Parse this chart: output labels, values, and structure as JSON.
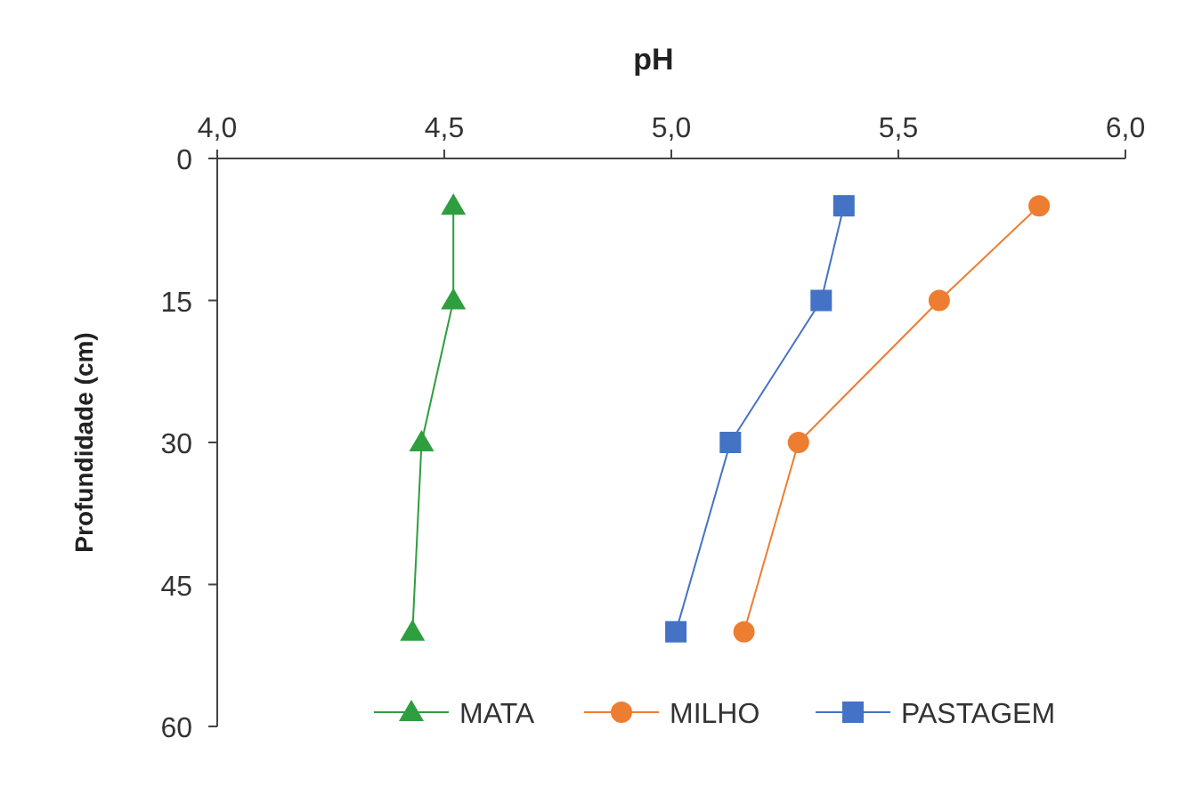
{
  "chart_data": {
    "type": "line",
    "xlabel": "pH",
    "ylabel": "Profundidade (cm)",
    "xlim": [
      4,
      6
    ],
    "xticks": [
      {
        "value": 4,
        "label": "4,0"
      },
      {
        "value": 4.5,
        "label": "4,5"
      },
      {
        "value": 5,
        "label": "5,0"
      },
      {
        "value": 5.5,
        "label": "5,5"
      },
      {
        "value": 6,
        "label": "6,0"
      }
    ],
    "ylim": [
      60,
      0
    ],
    "yticks": [
      0,
      15,
      30,
      45,
      60
    ],
    "legend": "bottom",
    "grid": false,
    "series": [
      {
        "name": "MATA",
        "color": "#2e9e3e",
        "marker": "triangle",
        "x": [
          4.52,
          4.52,
          4.45,
          4.43
        ],
        "values": [
          5,
          15,
          30,
          50
        ]
      },
      {
        "name": "MILHO",
        "color": "#ed7d31",
        "marker": "circle",
        "x": [
          5.81,
          5.59,
          5.28,
          5.16
        ],
        "values": [
          5,
          15,
          30,
          50
        ]
      },
      {
        "name": "PASTAGEM",
        "color": "#4472c4",
        "marker": "square",
        "x": [
          5.38,
          5.33,
          5.13,
          5.01
        ],
        "values": [
          5,
          15,
          30,
          50
        ]
      }
    ]
  }
}
